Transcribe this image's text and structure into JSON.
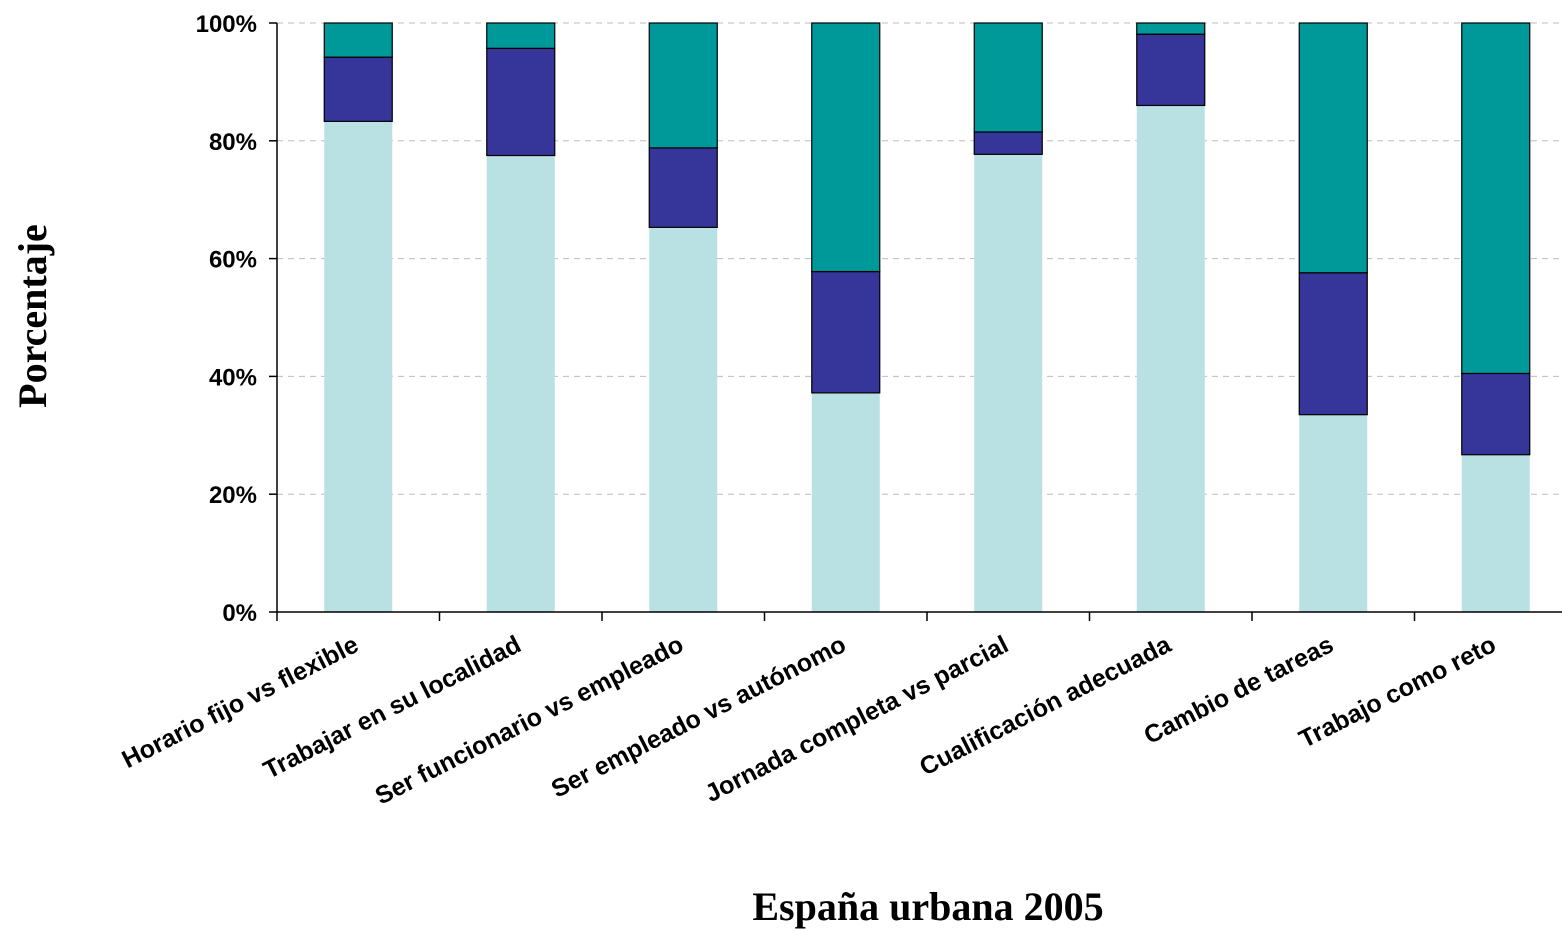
{
  "chart_data": {
    "type": "bar",
    "stacked": true,
    "percent": true,
    "xlabel": "España urbana 2005",
    "ylabel": "Porcentaje",
    "ylim": [
      0,
      100
    ],
    "yticks": [
      0,
      20,
      40,
      60,
      80,
      100
    ],
    "ytick_labels": [
      "0%",
      "20%",
      "40%",
      "60%",
      "80%",
      "100%"
    ],
    "grid": true,
    "legend": "none",
    "categories": [
      "Horario fijo vs flexible",
      "Trabajar en su localidad",
      "Ser funcionario vs empleado",
      "Ser empleado vs autónomo",
      "Jornada completa vs parcial",
      "Cualificación adecuada",
      "Cambio de tareas",
      "Trabajo como reto"
    ],
    "series": [
      {
        "color": "#b9e0e3",
        "values": [
          83.3,
          77.5,
          65.3,
          37.2,
          77.7,
          86.0,
          33.5,
          26.7
        ]
      },
      {
        "color": "#35359a",
        "values": [
          10.9,
          18.2,
          13.5,
          20.6,
          3.8,
          12.1,
          24.1,
          13.8
        ]
      },
      {
        "color": "#009999",
        "values": [
          5.8,
          4.3,
          21.2,
          42.2,
          18.5,
          1.9,
          42.4,
          59.5
        ]
      }
    ]
  }
}
